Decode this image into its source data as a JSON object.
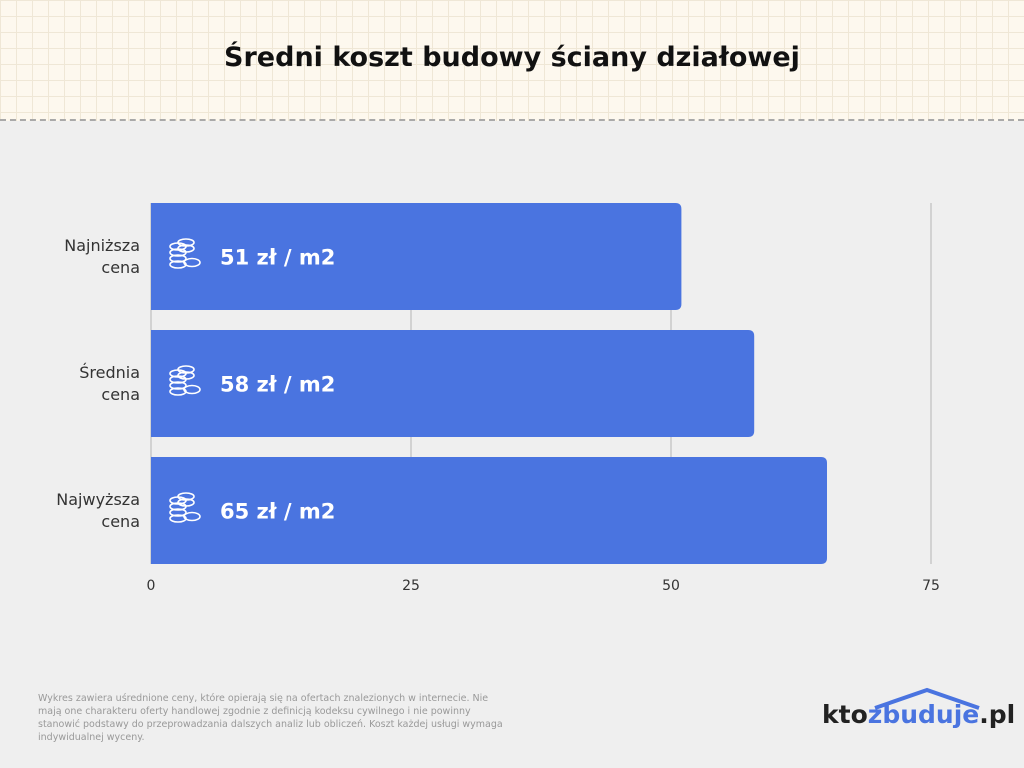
{
  "title": "Średni koszt budowy ściany działowej",
  "chart_data": {
    "type": "bar",
    "orientation": "horizontal",
    "categories": [
      "Najniższa cena",
      "Średnia cena",
      "Najwyższa cena"
    ],
    "values": [
      51,
      58,
      65
    ],
    "value_labels": [
      "51 zł / m2",
      "58 zł / m2",
      "65 zł / m2"
    ],
    "color": "#4a74e0",
    "xlim": [
      0,
      75
    ],
    "xticks": [
      0,
      25,
      50,
      75
    ],
    "grid": true
  },
  "footnote": "Wykres zawiera uśrednione ceny, które opierają się na ofertach znalezionych w internecie. Nie mają one charakteru oferty handlowej zgodnie z definicją kodeksu cywilnego i nie powinny stanowić podstawy do przeprowadzania dalszych analiz lub obliczeń. Koszt każdej usługi wymaga indywidualnej wyceny.",
  "logo": [
    "kto",
    "zbuduje",
    ".pl"
  ]
}
